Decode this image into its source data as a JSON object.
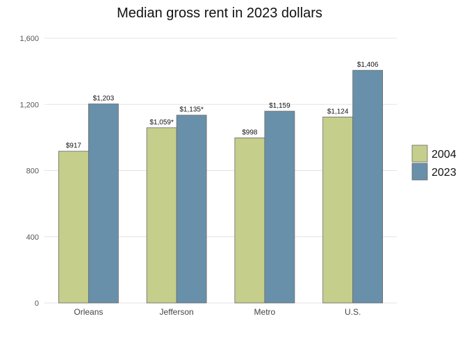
{
  "chart_data": {
    "type": "bar",
    "title": "Median gross rent in 2023 dollars",
    "xlabel": "",
    "ylabel": "",
    "categories": [
      "Orleans",
      "Jefferson",
      "Metro",
      "U.S."
    ],
    "series": [
      {
        "name": "2004",
        "color": "#c5ce8b",
        "values": [
          917,
          1059,
          998,
          1124
        ],
        "labels": [
          "$917",
          "$1,059*",
          "$998",
          "$1,124"
        ]
      },
      {
        "name": "2023",
        "color": "#6890aa",
        "values": [
          1203,
          1135,
          1159,
          1406
        ],
        "labels": [
          "$1,203",
          "$1,135*",
          "$1,159",
          "$1,406"
        ]
      }
    ],
    "ylim": [
      0,
      1600
    ],
    "yticks": [
      0,
      400,
      800,
      1200,
      1600
    ],
    "ytick_labels": [
      "0",
      "400",
      "800",
      "1,200",
      "1,600"
    ],
    "grid": "horizontal",
    "legend_position": "right"
  }
}
